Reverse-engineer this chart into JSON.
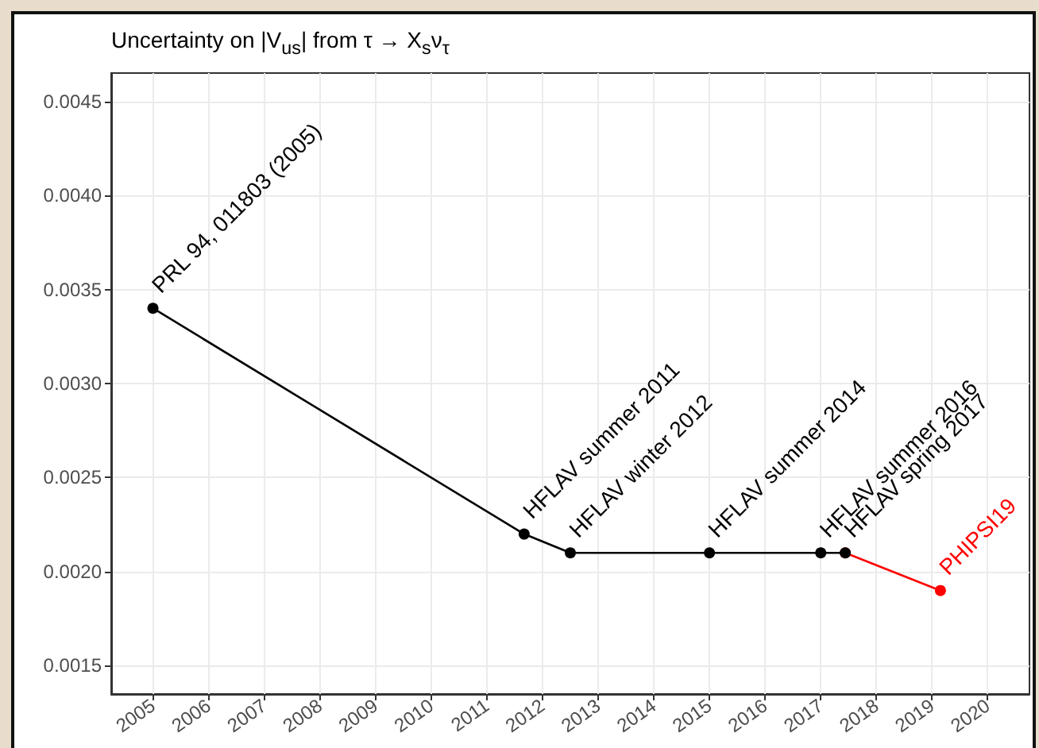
{
  "chart_data": {
    "type": "line",
    "title": "Uncertainty on |V$_{us}$| from τ → X$_{s}$ν$_{τ}$",
    "series": [
      {
        "color": "#000000",
        "x": [
          2005,
          2011.67,
          2012.5,
          2015,
          2017,
          2017.44
        ],
        "values": [
          0.0034,
          0.0022,
          0.0021,
          0.0021,
          0.0021,
          0.0021
        ]
      },
      {
        "color": "#ff0000",
        "x": [
          2017.44,
          2019.15
        ],
        "values": [
          0.0021,
          0.0019
        ]
      }
    ],
    "xlim": [
      2004.25,
      2020.75
    ],
    "xticks": [
      2005,
      2006,
      2007,
      2008,
      2009,
      2010,
      2011,
      2012,
      2013,
      2014,
      2015,
      2016,
      2017,
      2018,
      2019,
      2020
    ],
    "ylim": [
      0.00135,
      0.00465
    ],
    "yticks": [
      0.0015,
      {
        "value": 0.002,
        "label": "0.0020"
      },
      0.0025,
      {
        "value": 0.003,
        "label": "0.0030"
      },
      0.0035,
      {
        "value": 0.004,
        "label": "0.0040"
      },
      0.0045
    ],
    "grid": true,
    "marker": "circle",
    "line_style": "solid",
    "annotations": [
      {
        "text": "PRL 94, 011803 (2005)",
        "x": 2005,
        "y": 0.0034
      },
      {
        "text": "HFLAV summer 2011",
        "x": 2011.67,
        "y": 0.0022
      },
      {
        "text": "HFLAV winter 2012",
        "x": 2012.5,
        "y": 0.0021
      },
      {
        "text": "HFLAV summer 2014",
        "x": 2015,
        "y": 0.0021
      },
      {
        "text": "HFLAV summer 2016",
        "x": 2017,
        "y": 0.0021
      },
      {
        "text": "HFLAV spring 2017",
        "x": 2017.44,
        "y": 0.0021
      },
      {
        "text": "PHIPSI19",
        "x": 2019.15,
        "y": 0.0019
      }
    ]
  }
}
